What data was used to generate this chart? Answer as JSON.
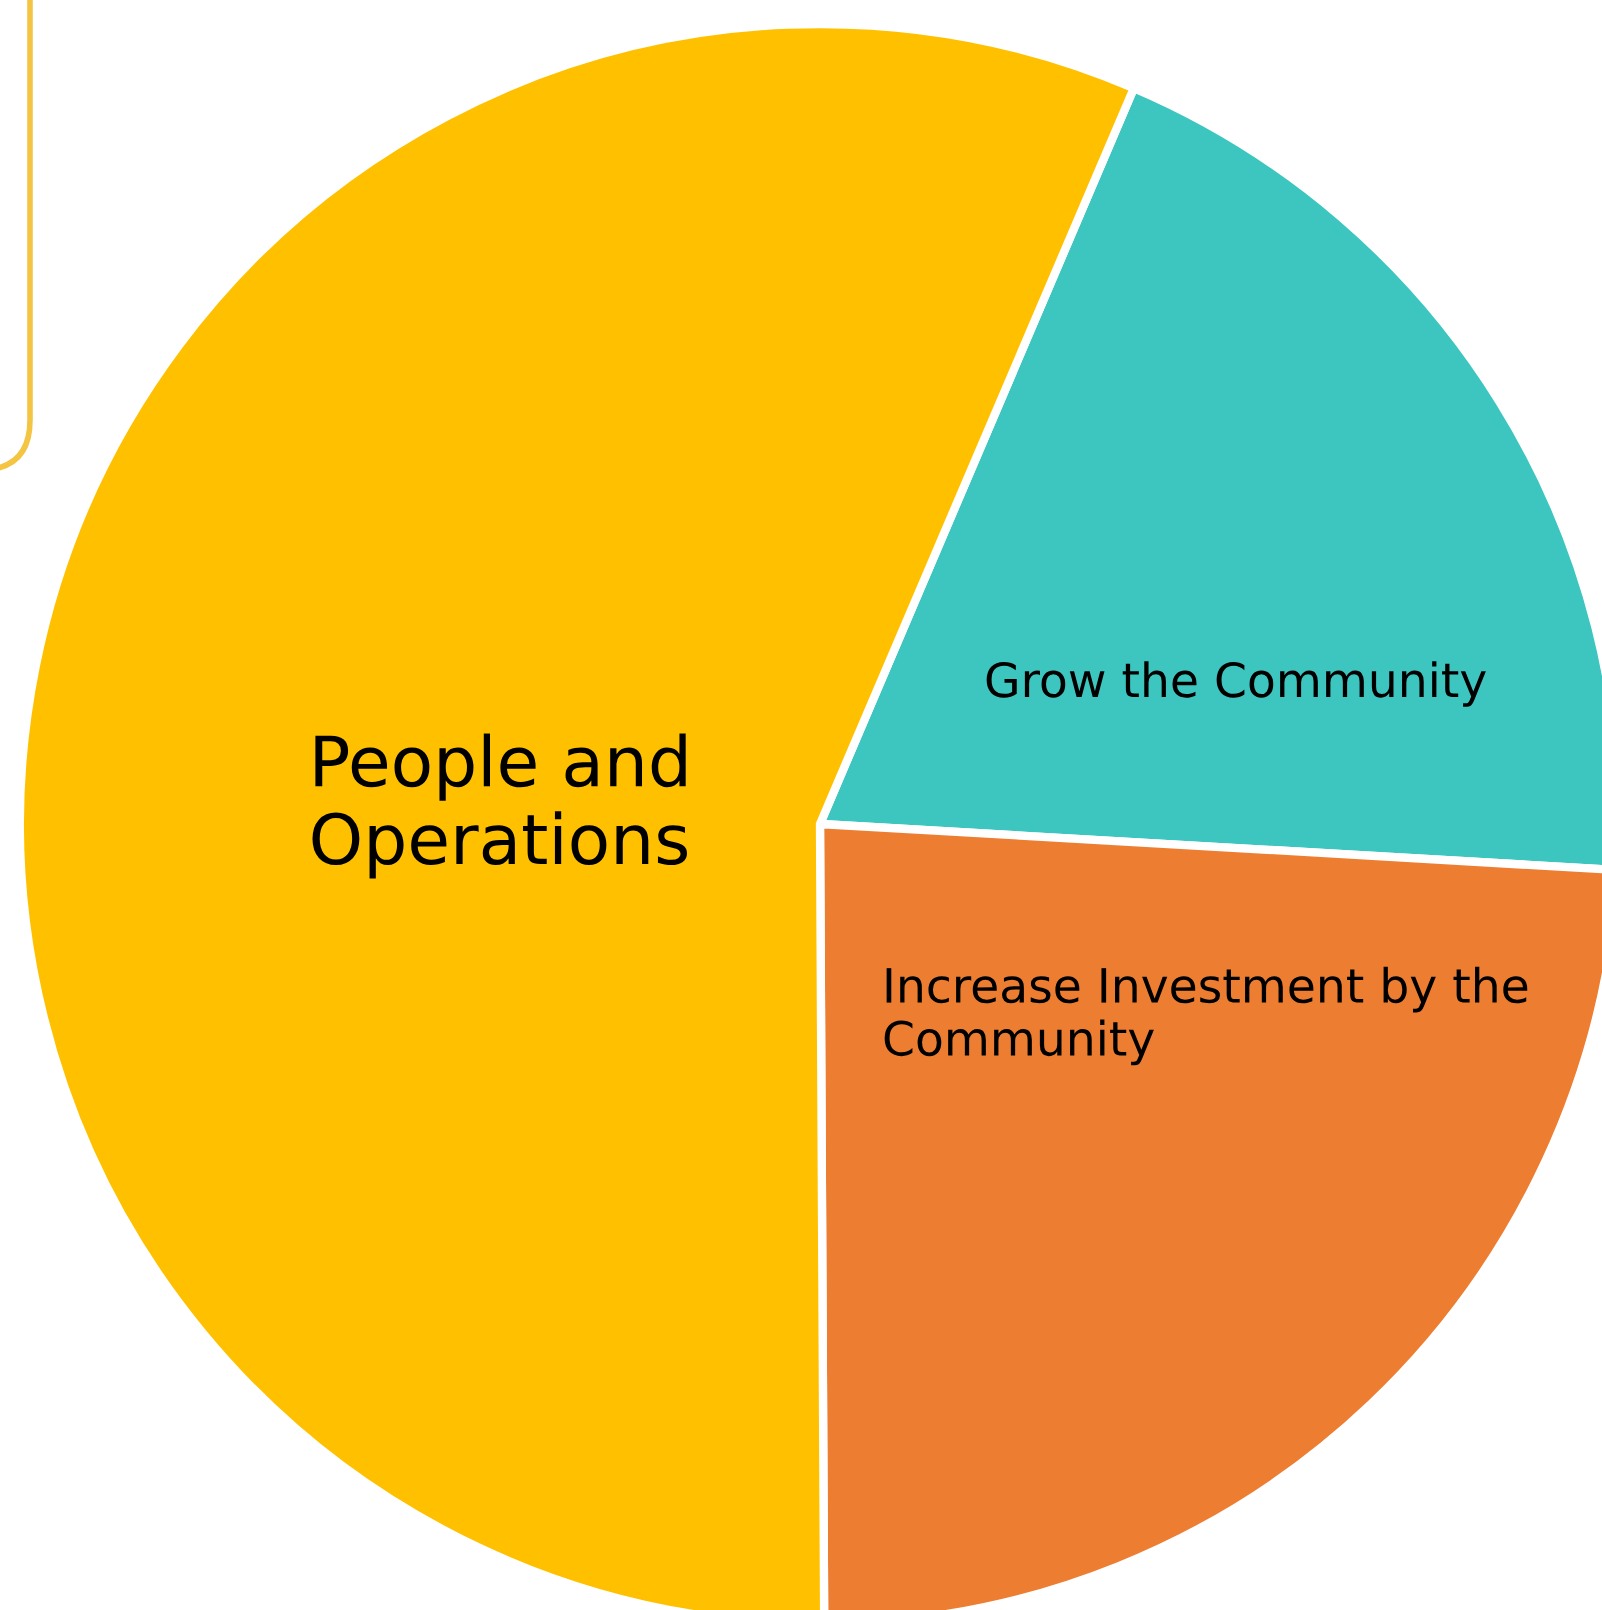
{
  "chart_data": {
    "type": "pie",
    "categories": [
      "Grow the Community",
      "Increase Investment by the Community",
      "People and Operations"
    ],
    "values": [
      19.5,
      24,
      56.5
    ],
    "colors": [
      "#3cc6bf",
      "#ed7d31",
      "#ffc000"
    ]
  }
}
